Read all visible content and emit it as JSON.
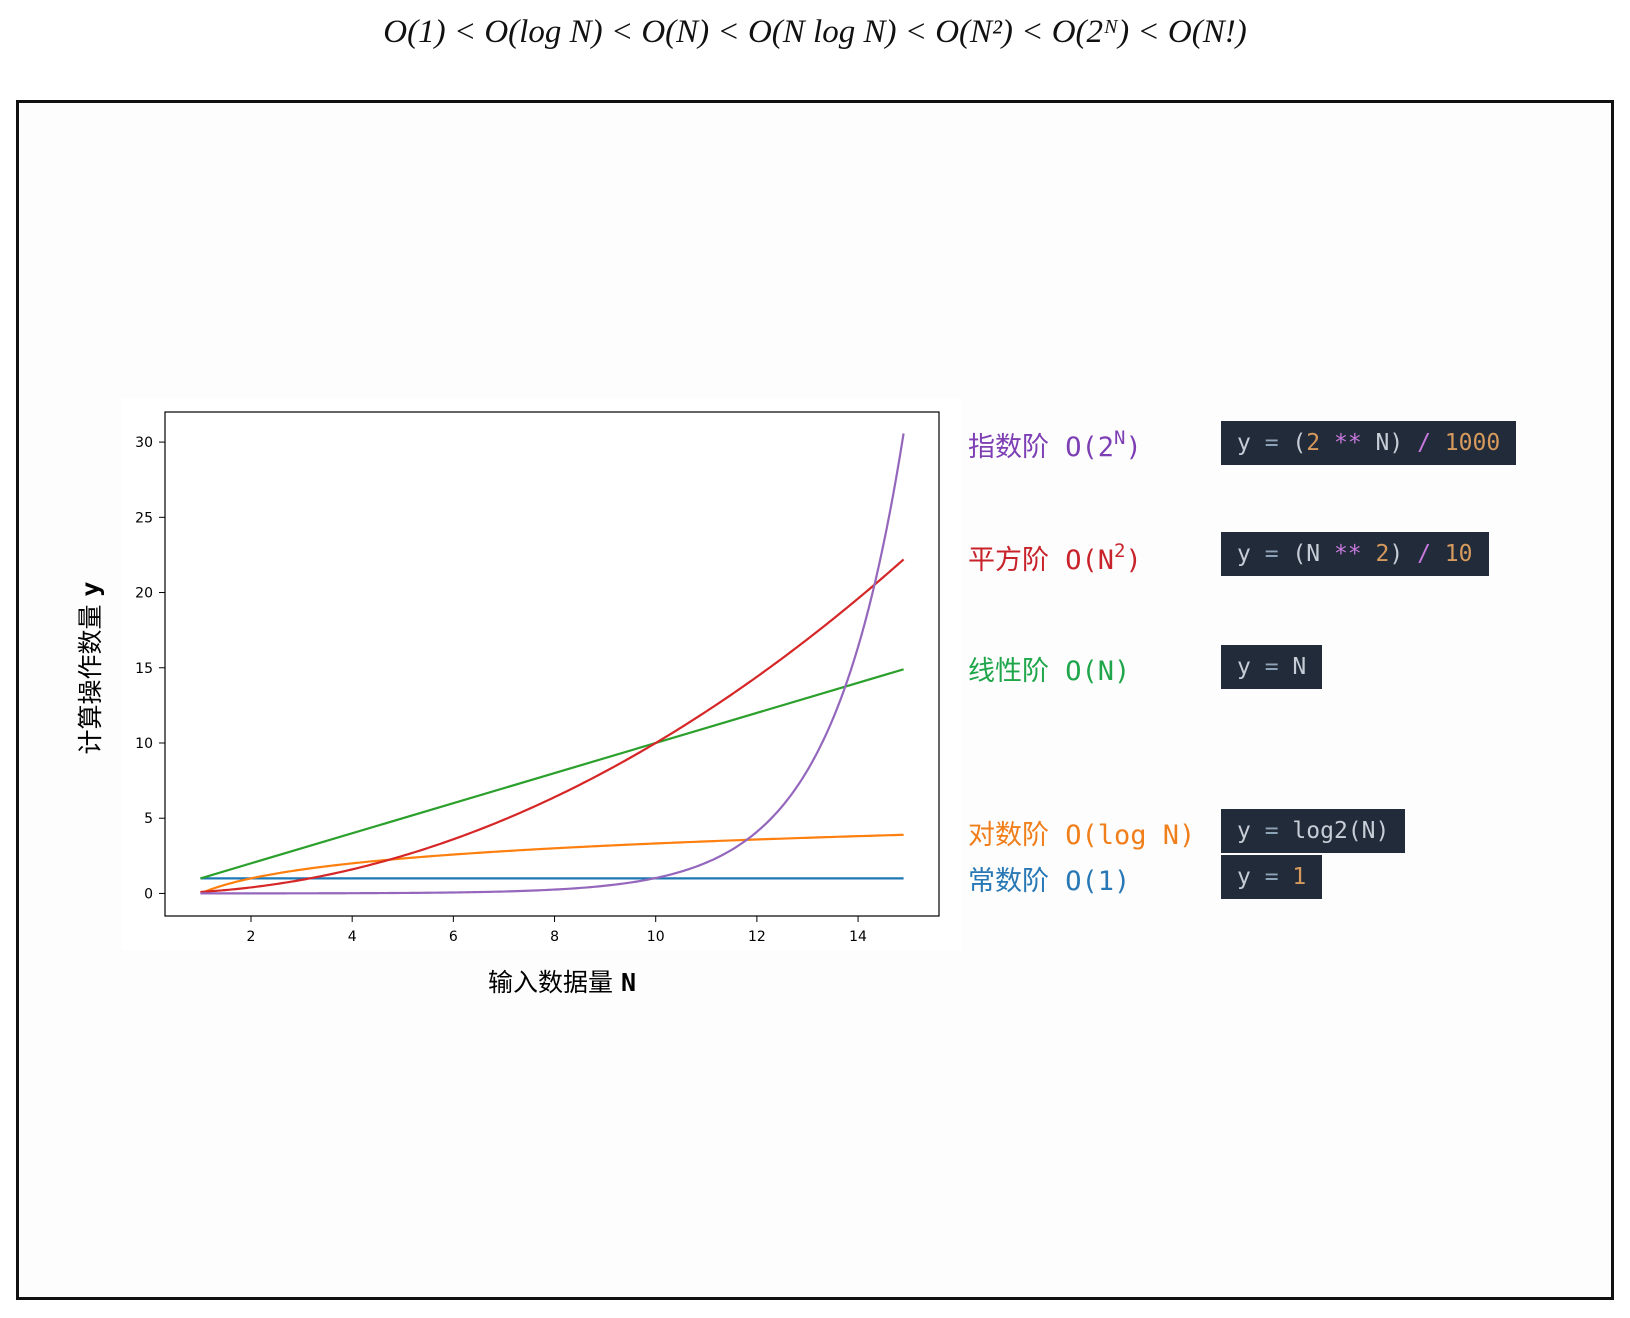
{
  "formula": "O(1) < O(log N) < O(N) < O(N log N) < O(N²) < O(2ᴺ) < O(N!)",
  "chart_data": {
    "type": "line",
    "title": "",
    "xlabel": "输入数据量",
    "xlabel_var": "N",
    "ylabel": "计算操作数量",
    "ylabel_var": "y",
    "xlim": [
      0.3,
      15.6
    ],
    "ylim": [
      -1.5,
      32
    ],
    "x_ticks": [
      2,
      4,
      6,
      8,
      10,
      12,
      14
    ],
    "y_ticks": [
      0,
      5,
      10,
      15,
      20,
      25,
      30
    ],
    "x_range": [
      1,
      14.9
    ],
    "grid": false,
    "series": [
      {
        "key": "const",
        "color": "#1f77b4",
        "x": [
          1,
          14.9
        ],
        "y": [
          1,
          1
        ]
      },
      {
        "key": "log",
        "color": "#ff7f0e",
        "x": [
          1,
          2,
          3,
          4,
          5,
          6,
          7,
          8,
          9,
          10,
          11,
          12,
          13,
          14,
          14.9
        ],
        "y": [
          0,
          1,
          1.58,
          2,
          2.32,
          2.58,
          2.81,
          3,
          3.17,
          3.32,
          3.46,
          3.58,
          3.7,
          3.81,
          3.9
        ]
      },
      {
        "key": "linear",
        "color": "#2ca02c",
        "x": [
          1,
          14.9
        ],
        "y": [
          1,
          14.9
        ]
      },
      {
        "key": "quadratic",
        "color": "#d62728",
        "x": [
          1,
          2,
          3,
          4,
          5,
          6,
          7,
          8,
          9,
          10,
          11,
          12,
          13,
          14,
          14.9
        ],
        "y": [
          0.1,
          0.4,
          0.9,
          1.6,
          2.5,
          3.6,
          4.9,
          6.4,
          8.1,
          10,
          12.1,
          14.4,
          16.9,
          19.6,
          22.2
        ]
      },
      {
        "key": "exponential",
        "color": "#9467bd",
        "x": [
          1,
          2,
          3,
          4,
          5,
          6,
          7,
          8,
          9,
          10,
          11,
          12,
          12.5,
          13,
          13.5,
          14,
          14.5,
          14.9
        ],
        "y": [
          0.002,
          0.004,
          0.008,
          0.016,
          0.032,
          0.064,
          0.128,
          0.256,
          0.512,
          1.02,
          2.05,
          4.1,
          5.79,
          8.19,
          11.59,
          16.38,
          23.17,
          30.57
        ]
      }
    ]
  },
  "legend": [
    {
      "key": "exponential",
      "color": "#7e3fb5",
      "name": "指数阶",
      "notation": "O(2",
      "sup": "N",
      "tail": ")",
      "code": [
        {
          "t": "y ",
          "c": ""
        },
        {
          "t": "=",
          "c": "eq"
        },
        {
          "t": " (",
          "c": ""
        },
        {
          "t": "2",
          "c": "num"
        },
        {
          "t": " ",
          "c": ""
        },
        {
          "t": "**",
          "c": "op"
        },
        {
          "t": " N) ",
          "c": ""
        },
        {
          "t": "/",
          "c": "op"
        },
        {
          "t": " ",
          "c": ""
        },
        {
          "t": "1000",
          "c": "num"
        }
      ]
    },
    {
      "key": "quadratic",
      "color": "#c8222a",
      "name": "平方阶",
      "notation": "O(N",
      "sup": "2",
      "tail": ")",
      "code": [
        {
          "t": "y ",
          "c": ""
        },
        {
          "t": "=",
          "c": "eq"
        },
        {
          "t": " (N ",
          "c": ""
        },
        {
          "t": "**",
          "c": "op"
        },
        {
          "t": " ",
          "c": ""
        },
        {
          "t": "2",
          "c": "num"
        },
        {
          "t": ") ",
          "c": ""
        },
        {
          "t": "/",
          "c": "op"
        },
        {
          "t": " ",
          "c": ""
        },
        {
          "t": "10",
          "c": "num"
        }
      ]
    },
    {
      "key": "linear",
      "color": "#1fa64a",
      "name": "线性阶",
      "notation": "O(N)",
      "sup": "",
      "tail": "",
      "code": [
        {
          "t": "y ",
          "c": ""
        },
        {
          "t": "=",
          "c": "eq"
        },
        {
          "t": " N",
          "c": ""
        }
      ]
    },
    {
      "key": "log",
      "color": "#f07f1b",
      "name": "对数阶",
      "notation": "O(log N)",
      "sup": "",
      "tail": "",
      "code": [
        {
          "t": "y ",
          "c": ""
        },
        {
          "t": "=",
          "c": "eq"
        },
        {
          "t": " log2(N)",
          "c": ""
        }
      ]
    },
    {
      "key": "const",
      "color": "#2878b5",
      "name": "常数阶",
      "notation": "O(1)",
      "sup": "",
      "tail": "",
      "code": [
        {
          "t": "y ",
          "c": ""
        },
        {
          "t": "=",
          "c": "eq"
        },
        {
          "t": " ",
          "c": ""
        },
        {
          "t": "1",
          "c": "num"
        }
      ]
    }
  ]
}
